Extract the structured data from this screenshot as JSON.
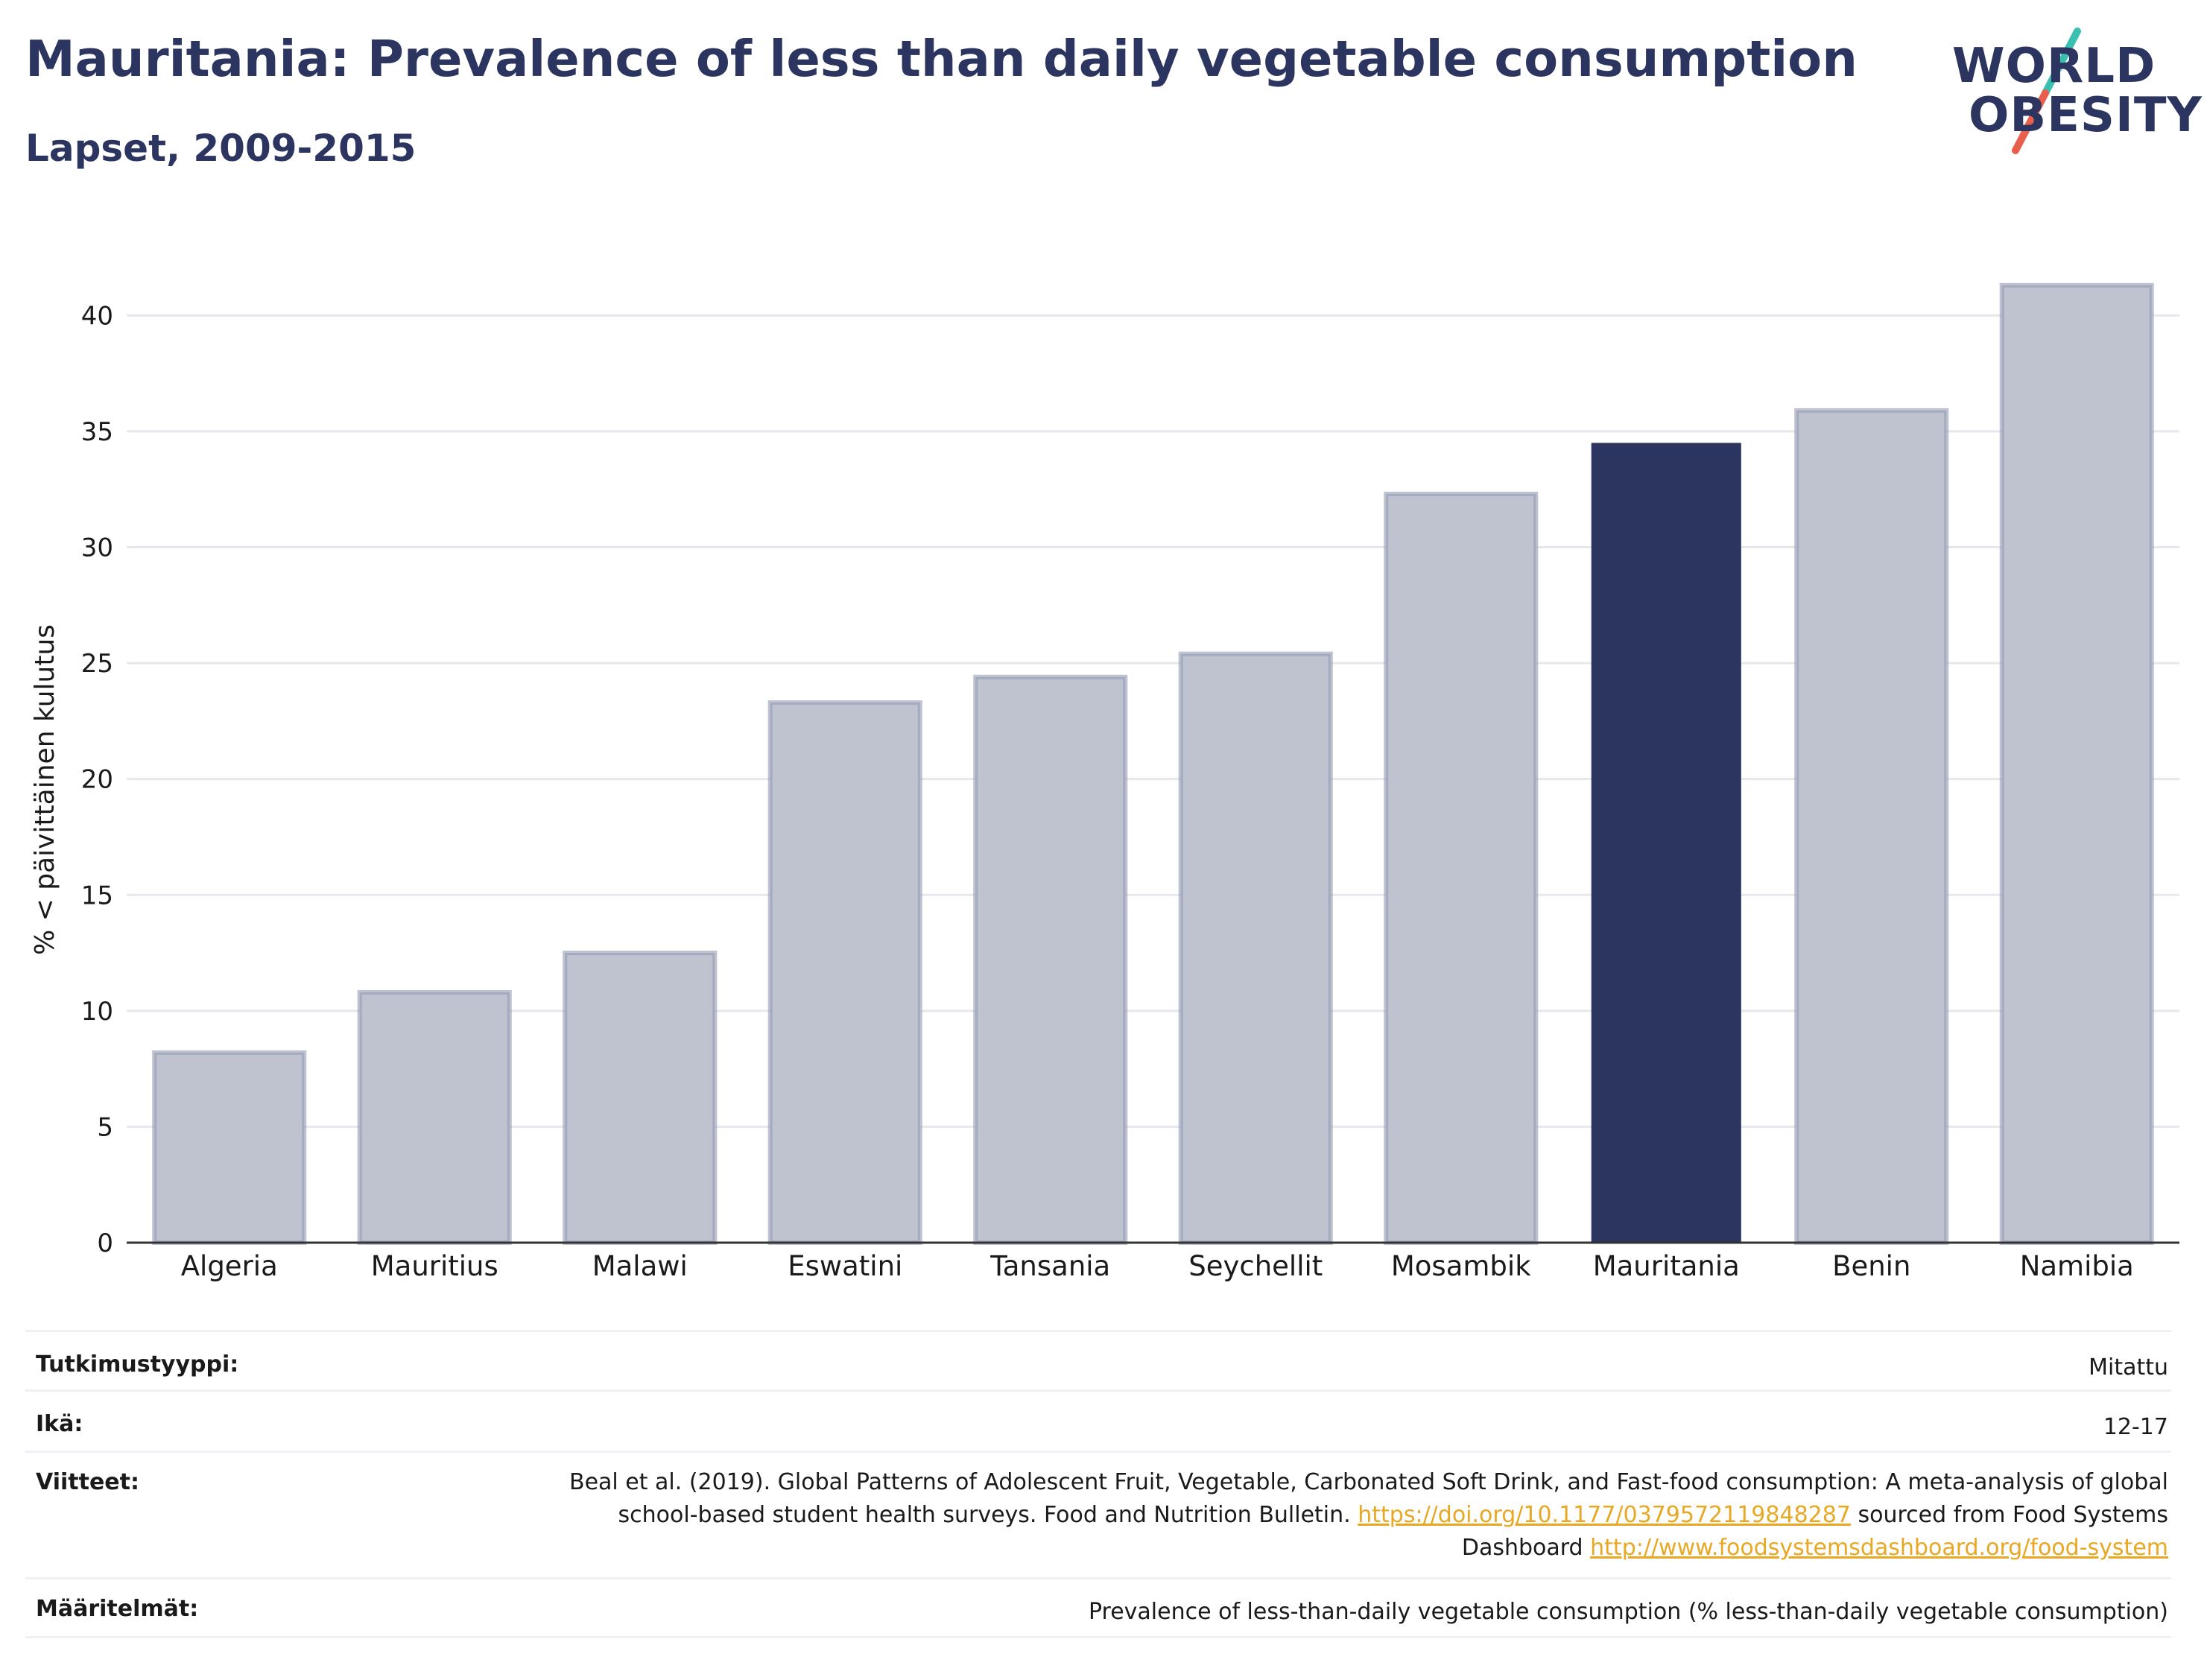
{
  "header": {
    "title": "Mauritania: Prevalence of less than daily vegetable consumption",
    "subtitle": "Lapset, 2009-2015"
  },
  "logo": {
    "line1": "WORLD",
    "line2": "OBESITY",
    "accent_teal": "#3bbfb0",
    "accent_red": "#e8604c"
  },
  "chart_data": {
    "type": "bar",
    "categories": [
      "Algeria",
      "Mauritius",
      "Malawi",
      "Eswatini",
      "Tansania",
      "Seychellit",
      "Mosambik",
      "Mauritania",
      "Benin",
      "Namibia"
    ],
    "values": [
      8.2,
      10.8,
      12.5,
      23.3,
      24.4,
      25.4,
      32.3,
      34.5,
      35.9,
      41.3
    ],
    "highlight": "Mauritania",
    "ylabel": "% < päivittäinen kulutus",
    "xlabel": "",
    "ylim": [
      0,
      43
    ],
    "yticks": [
      0,
      5,
      10,
      15,
      20,
      25,
      30,
      35,
      40
    ],
    "grid": true,
    "colors": {
      "bar": "#bfc2cf",
      "bar_outline": "#959bb2",
      "highlight": "#2b3560",
      "grid": "#e6e8ee",
      "axis": "#333333"
    }
  },
  "details": {
    "study_type_label": "Tutkimustyyppi:",
    "study_type_value": "Mitattu",
    "age_label": "Ikä:",
    "age_value": "12-17",
    "references_label": "Viitteet:",
    "references_text1": "Beal et al. (2019). Global Patterns of Adolescent Fruit, Vegetable, Carbonated Soft Drink, and Fast-food consumption: A meta-analysis of global school-based student health surveys. Food and Nutrition Bulletin.",
    "references_link1": "https://doi.org/10.1177/0379572119848287",
    "references_text2": "sourced from Food Systems Dashboard",
    "references_link2": "http://www.foodsystemsdashboard.org/food-system",
    "definitions_label": "Määritelmät:",
    "definitions_value": "Prevalence of less-than-daily vegetable consumption (% less-than-daily vegetable consumption)"
  }
}
